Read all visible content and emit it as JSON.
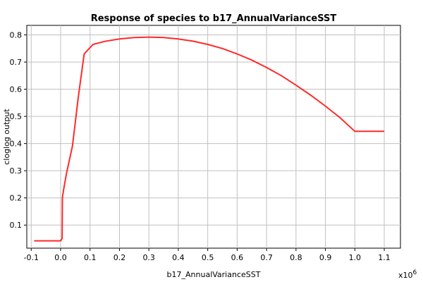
{
  "chart_data": {
    "type": "line",
    "title": "Response of species to b17_AnnualVarianceSST",
    "xlabel": "b17_AnnualVarianceSST",
    "ylabel": "cloglog output",
    "x_multiplier_base": "x10",
    "x_multiplier_exp": "6",
    "xlim": [
      -0.115,
      1.155
    ],
    "ylim": [
      0.015,
      0.835
    ],
    "x_ticks": [
      -0.1,
      0.0,
      0.1,
      0.2,
      0.3,
      0.4,
      0.5,
      0.6,
      0.7,
      0.8,
      0.9,
      1.0,
      1.1
    ],
    "x_tick_labels": [
      "-0.1",
      "0.0",
      "0.1",
      "0.2",
      "0.3",
      "0.4",
      "0.5",
      "0.6",
      "0.7",
      "0.8",
      "0.9",
      "1.0",
      "1.1"
    ],
    "y_ticks": [
      0.1,
      0.2,
      0.3,
      0.4,
      0.5,
      0.6,
      0.7,
      0.8
    ],
    "y_tick_labels": [
      "0.1",
      "0.2",
      "0.3",
      "0.4",
      "0.5",
      "0.6",
      "0.7",
      "0.8"
    ],
    "grid": true,
    "line_color": "#ff2a2a",
    "series": [
      {
        "x": [
          -0.09,
          -0.05,
          0.0,
          0.005,
          0.006,
          0.01,
          0.02,
          0.04,
          0.05,
          0.06,
          0.08,
          0.11,
          0.15,
          0.2,
          0.25,
          0.3,
          0.35,
          0.4,
          0.45,
          0.5,
          0.55,
          0.6,
          0.65,
          0.7,
          0.75,
          0.8,
          0.85,
          0.9,
          0.95,
          1.0,
          1.05,
          1.1
        ],
        "y": [
          0.042,
          0.042,
          0.042,
          0.05,
          0.2,
          0.23,
          0.29,
          0.39,
          0.48,
          0.57,
          0.73,
          0.765,
          0.776,
          0.785,
          0.79,
          0.792,
          0.79,
          0.785,
          0.777,
          0.765,
          0.75,
          0.73,
          0.707,
          0.68,
          0.65,
          0.615,
          0.578,
          0.538,
          0.495,
          0.445,
          0.445,
          0.445
        ]
      }
    ]
  }
}
